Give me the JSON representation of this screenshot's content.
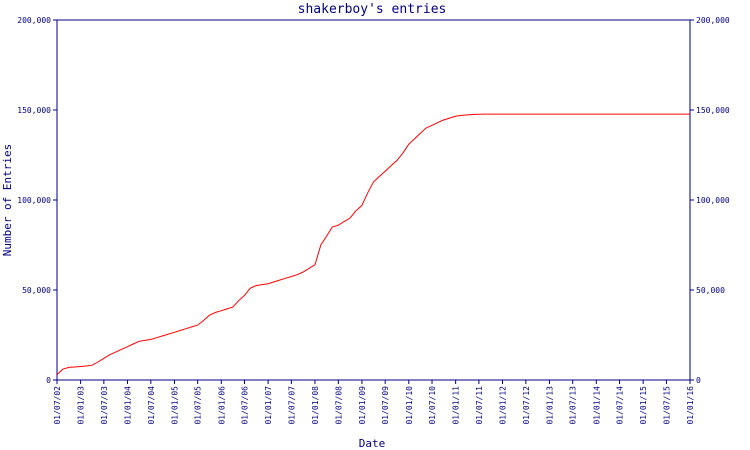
{
  "chart_data": {
    "type": "line",
    "title": "shakerboy's entries",
    "xlabel": "Date",
    "ylabel": "Number of Entries",
    "ylim": [
      0,
      200000
    ],
    "yticks": [
      0,
      50000,
      100000,
      150000,
      200000
    ],
    "ytick_labels": [
      "0",
      "50,000",
      "100,000",
      "150,000",
      "200,000"
    ],
    "xlim": [
      "2002-07-01",
      "2016-01-01"
    ],
    "xticks": [
      "2002-07-01",
      "2003-01-01",
      "2003-07-01",
      "2004-01-01",
      "2004-07-01",
      "2005-01-01",
      "2005-07-01",
      "2006-01-01",
      "2006-07-01",
      "2007-01-01",
      "2007-07-01",
      "2008-01-01",
      "2008-07-01",
      "2009-01-01",
      "2009-07-01",
      "2010-01-01",
      "2010-07-01",
      "2011-01-01",
      "2011-07-01",
      "2012-01-01",
      "2012-07-01",
      "2013-01-01",
      "2013-07-01",
      "2014-01-01",
      "2014-07-01",
      "2015-01-01",
      "2015-07-01",
      "2016-01-01"
    ],
    "xtick_labels": [
      "01/07/02",
      "01/01/03",
      "01/07/03",
      "01/01/04",
      "01/07/04",
      "01/01/05",
      "01/07/05",
      "01/01/06",
      "01/07/06",
      "01/01/07",
      "01/07/07",
      "01/01/08",
      "01/07/08",
      "01/01/09",
      "01/07/09",
      "01/01/10",
      "01/07/10",
      "01/01/11",
      "01/07/11",
      "01/01/12",
      "01/07/12",
      "01/01/13",
      "01/07/13",
      "01/01/14",
      "01/07/14",
      "01/01/15",
      "01/07/15",
      "01/01/16"
    ],
    "grid": false,
    "axis_color": "#000080",
    "series": [
      {
        "color": "#ff0000",
        "x": [
          "2002-07-01",
          "2002-08-15",
          "2002-10-01",
          "2002-11-15",
          "2003-01-01",
          "2003-02-15",
          "2003-04-01",
          "2003-05-15",
          "2003-07-01",
          "2003-08-15",
          "2003-10-01",
          "2003-11-15",
          "2004-01-01",
          "2004-02-15",
          "2004-04-01",
          "2004-05-15",
          "2004-07-01",
          "2004-08-15",
          "2004-10-01",
          "2004-11-15",
          "2005-01-01",
          "2005-02-15",
          "2005-04-01",
          "2005-05-15",
          "2005-07-01",
          "2005-08-15",
          "2005-10-01",
          "2005-11-15",
          "2006-01-01",
          "2006-02-15",
          "2006-04-01",
          "2006-05-15",
          "2006-07-01",
          "2006-08-15",
          "2006-10-01",
          "2006-11-15",
          "2007-01-01",
          "2007-02-15",
          "2007-04-01",
          "2007-05-15",
          "2007-07-01",
          "2007-08-15",
          "2007-10-01",
          "2007-11-15",
          "2008-01-01",
          "2008-02-15",
          "2008-04-01",
          "2008-05-15",
          "2008-07-01",
          "2008-08-15",
          "2008-10-01",
          "2008-11-15",
          "2009-01-01",
          "2009-02-15",
          "2009-04-01",
          "2009-05-15",
          "2009-07-01",
          "2009-08-15",
          "2009-10-01",
          "2009-11-15",
          "2010-01-01",
          "2010-02-15",
          "2010-04-01",
          "2010-05-15",
          "2010-07-01",
          "2010-08-15",
          "2010-10-01",
          "2010-11-15",
          "2011-01-01",
          "2011-02-15",
          "2011-04-01",
          "2011-05-15",
          "2011-07-01",
          "2011-08-15",
          "2011-10-01",
          "2011-11-15",
          "2012-01-01",
          "2012-02-15",
          "2012-04-01",
          "2012-05-15",
          "2012-07-01",
          "2012-08-15",
          "2012-10-01",
          "2012-11-15",
          "2013-01-01",
          "2014-01-01",
          "2015-01-01",
          "2016-01-01"
        ],
        "y": [
          3000,
          6000,
          7000,
          7200,
          7500,
          7800,
          8200,
          10000,
          12000,
          14000,
          15500,
          17000,
          18500,
          20000,
          21500,
          22000,
          22500,
          23500,
          24500,
          25500,
          26500,
          27500,
          28500,
          29500,
          30500,
          33000,
          36000,
          37500,
          38500,
          39500,
          40500,
          44000,
          47000,
          51000,
          52500,
          53000,
          53500,
          54500,
          55500,
          56500,
          57500,
          58500,
          60000,
          62000,
          64000,
          75000,
          80000,
          85000,
          86000,
          88000,
          90000,
          94000,
          97000,
          104000,
          110000,
          113000,
          116000,
          119000,
          122000,
          126000,
          131000,
          134000,
          137000,
          140000,
          141500,
          143000,
          144500,
          145500,
          146500,
          147000,
          147300,
          147500,
          147600,
          147700,
          147700,
          147700,
          147700,
          147700,
          147700,
          147700,
          147700,
          147700,
          147700,
          147700,
          147700,
          147700,
          147700,
          147700
        ]
      }
    ]
  }
}
